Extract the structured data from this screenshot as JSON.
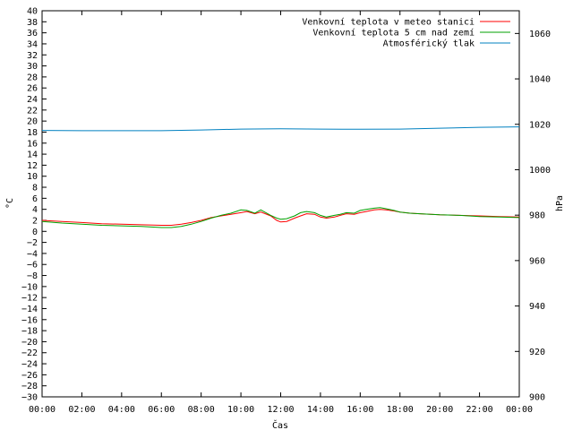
{
  "chart_data": {
    "type": "line",
    "xlabel": "Čas",
    "ylabel": "°C",
    "y2label": "hPa",
    "x_ticks": [
      "00:00",
      "02:00",
      "04:00",
      "06:00",
      "08:00",
      "10:00",
      "12:00",
      "14:00",
      "16:00",
      "18:00",
      "20:00",
      "22:00",
      "00:00"
    ],
    "xlim": [
      0,
      24
    ],
    "ylim": [
      -30,
      40
    ],
    "y_step": 2,
    "y2lim": [
      900,
      1070
    ],
    "y2_ticks": [
      900,
      920,
      940,
      960,
      980,
      1000,
      1020,
      1040,
      1060
    ],
    "grid": false,
    "legend_position": "top-right",
    "series": [
      {
        "name": "Venkovní teplota v meteo stanici",
        "color": "#ff0000",
        "axis": "left",
        "x": [
          0,
          1,
          2,
          3,
          4,
          5,
          6,
          6.5,
          7,
          7.5,
          8,
          8.5,
          9,
          9.5,
          10,
          10.3,
          10.7,
          11,
          11.5,
          11.8,
          12,
          12.3,
          12.7,
          13,
          13.3,
          13.7,
          14,
          14.3,
          14.7,
          15,
          15.3,
          15.7,
          16,
          16.3,
          16.7,
          17,
          17.3,
          17.7,
          18,
          18.5,
          19,
          20,
          21,
          22,
          23,
          24
        ],
        "y": [
          2.0,
          1.8,
          1.6,
          1.4,
          1.3,
          1.2,
          1.1,
          1.1,
          1.3,
          1.6,
          2.0,
          2.5,
          2.8,
          3.1,
          3.4,
          3.6,
          3.2,
          3.5,
          2.8,
          2.0,
          1.7,
          1.8,
          2.4,
          2.8,
          3.2,
          3.1,
          2.6,
          2.4,
          2.6,
          2.9,
          3.2,
          3.1,
          3.4,
          3.6,
          3.9,
          4.0,
          3.9,
          3.7,
          3.5,
          3.3,
          3.2,
          3.0,
          2.9,
          2.8,
          2.7,
          2.6
        ]
      },
      {
        "name": "Venkovní teplota 5 cm nad zemí",
        "color": "#00a000",
        "axis": "left",
        "x": [
          0,
          1,
          2,
          3,
          4,
          5,
          6,
          6.5,
          7,
          7.5,
          8,
          8.5,
          9,
          9.5,
          10,
          10.3,
          10.7,
          11,
          11.5,
          11.8,
          12,
          12.3,
          12.7,
          13,
          13.3,
          13.7,
          14,
          14.3,
          14.7,
          15,
          15.3,
          15.7,
          16,
          16.3,
          16.7,
          17,
          17.3,
          17.7,
          18,
          18.5,
          19,
          20,
          21,
          22,
          23,
          24
        ],
        "y": [
          1.8,
          1.5,
          1.3,
          1.1,
          1.0,
          0.9,
          0.7,
          0.7,
          0.9,
          1.3,
          1.8,
          2.4,
          2.9,
          3.3,
          3.9,
          3.8,
          3.3,
          3.9,
          2.9,
          2.4,
          2.2,
          2.3,
          2.8,
          3.4,
          3.6,
          3.4,
          2.9,
          2.6,
          2.9,
          3.1,
          3.4,
          3.3,
          3.8,
          4.0,
          4.2,
          4.3,
          4.1,
          3.8,
          3.5,
          3.3,
          3.2,
          3.0,
          2.9,
          2.7,
          2.6,
          2.5
        ]
      },
      {
        "name": "Atmosférický tlak",
        "color": "#0080c0",
        "axis": "right",
        "x": [
          0,
          2,
          4,
          6,
          8,
          10,
          12,
          14,
          16,
          18,
          20,
          22,
          24
        ],
        "y": [
          1017.3,
          1017.2,
          1017.2,
          1017.2,
          1017.5,
          1017.9,
          1018.0,
          1017.9,
          1017.8,
          1017.9,
          1018.3,
          1018.7,
          1018.9
        ]
      }
    ]
  }
}
